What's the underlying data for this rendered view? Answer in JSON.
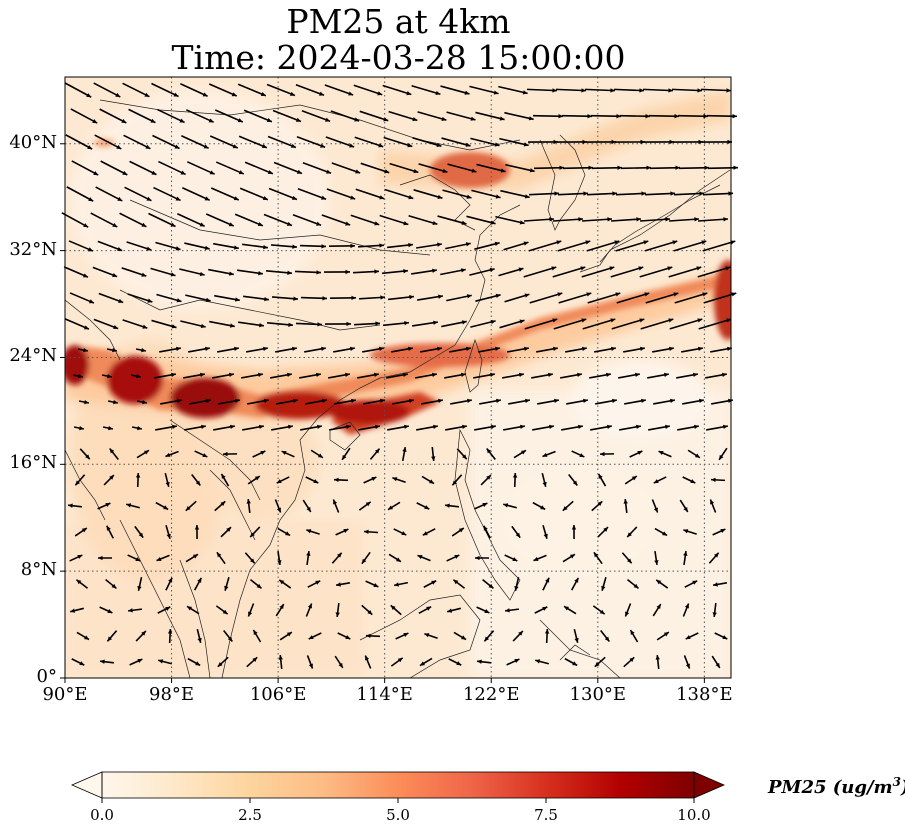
{
  "title_line1": "PM25 at 4km",
  "title_line2": "Time: 2024-03-28 15:00:00",
  "map": {
    "lon_range": [
      90,
      140
    ],
    "lat_range": [
      0,
      45
    ],
    "y_ticks": [
      "40°N",
      "32°N",
      "24°N",
      "16°N",
      "8°N",
      "0°"
    ],
    "x_ticks": [
      "90°E",
      "98°E",
      "106°E",
      "114°E",
      "122°E",
      "130°E",
      "138°E"
    ],
    "grid": "dotted",
    "features": [
      "coastlines",
      "country borders",
      "wind vectors"
    ]
  },
  "colorbar": {
    "colormap": "OrRd",
    "colors": [
      "#fff7ec",
      "#fee8c8",
      "#fdd49e",
      "#fdbb84",
      "#fc8d59",
      "#ef6548",
      "#d7301f",
      "#990000",
      "#7f0000"
    ],
    "ticks": [
      "0.0",
      "2.5",
      "5.0",
      "7.5",
      "10.0"
    ],
    "range": [
      0,
      10
    ],
    "extend": "both",
    "label": "PM25 (ug/m",
    "label_sup": "3",
    "label_end": ")"
  }
}
